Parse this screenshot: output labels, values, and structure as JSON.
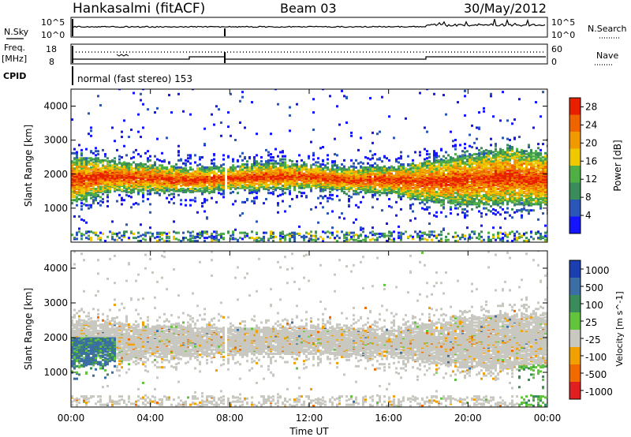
{
  "header": {
    "station": "Hankasalmi (fitACF)",
    "beam": "Beam 03",
    "date": "30/May/2012"
  },
  "small_panels": {
    "nsky_label": "N.Sky",
    "nsky_ticks": [
      "10^5",
      "10^0"
    ],
    "nsearch_ticks": [
      "10^5",
      "10^0"
    ],
    "nsearch_label": "N.Search",
    "freq_label_1": "Freq.",
    "freq_label_2": "[MHz]",
    "freq_ticks": [
      "18",
      "8"
    ],
    "nave_ticks": [
      "60",
      "0"
    ],
    "nave_label": "Nave",
    "cpid_label": "CPID",
    "cpid_text": "normal (fast stereo) 153"
  },
  "colors": {
    "power": [
      "#1414ff",
      "#2a56b8",
      "#3a8c5a",
      "#4fae44",
      "#f0c800",
      "#f09a00",
      "#f06400",
      "#e82000"
    ],
    "velocity": [
      "#1b3fb0",
      "#3a6ea5",
      "#3a8c5a",
      "#62c43c",
      "#c8c8c0",
      "#f0a000",
      "#f06a00",
      "#e02020"
    ]
  },
  "chart_data": [
    {
      "type": "heatmap",
      "title": "",
      "ylabel": "Slant Range [km]",
      "xlabel": "",
      "x_ticks": [
        "00:00",
        "04:00",
        "08:00",
        "12:00",
        "16:00",
        "20:00",
        "00:00"
      ],
      "y_ticks": [
        "4000",
        "3000",
        "2000",
        "1000"
      ],
      "ylim": [
        0,
        4500
      ],
      "xlim_hours": [
        0,
        24
      ],
      "colorbar": {
        "label": "Power [dB]",
        "ticks": [
          "28",
          "24",
          "20",
          "16",
          "12",
          "8",
          "4"
        ],
        "range": [
          0,
          30
        ]
      },
      "echo_band": [
        {
          "hour": 0,
          "center_km": 1800,
          "width_km": 1400
        },
        {
          "hour": 2,
          "center_km": 1900,
          "width_km": 900
        },
        {
          "hour": 4,
          "center_km": 1850,
          "width_km": 800
        },
        {
          "hour": 6,
          "center_km": 1800,
          "width_km": 700
        },
        {
          "hour": 8,
          "center_km": 1850,
          "width_km": 700
        },
        {
          "hour": 10,
          "center_km": 1900,
          "width_km": 800
        },
        {
          "hour": 12,
          "center_km": 1900,
          "width_km": 700
        },
        {
          "hour": 14,
          "center_km": 1800,
          "width_km": 700
        },
        {
          "hour": 16,
          "center_km": 1800,
          "width_km": 800
        },
        {
          "hour": 18,
          "center_km": 1750,
          "width_km": 1200
        },
        {
          "hour": 20,
          "center_km": 1800,
          "width_km": 1500
        },
        {
          "hour": 22,
          "center_km": 1900,
          "width_km": 1700
        },
        {
          "hour": 24,
          "center_km": 1800,
          "width_km": 1500
        }
      ]
    },
    {
      "type": "heatmap",
      "title": "",
      "ylabel": "Slant Range [km]",
      "xlabel": "Time UT",
      "x_ticks": [
        "00:00",
        "04:00",
        "08:00",
        "12:00",
        "16:00",
        "20:00",
        "00:00"
      ],
      "y_ticks": [
        "4000",
        "3000",
        "2000",
        "1000"
      ],
      "ylim": [
        0,
        4500
      ],
      "xlim_hours": [
        0,
        24
      ],
      "colorbar": {
        "label": "Velocity [m s^-1]",
        "ticks": [
          "1000",
          "500",
          "100",
          "25",
          "-25",
          "-100",
          "-500",
          "-1000"
        ]
      },
      "echo_band": [
        {
          "hour": 0,
          "center_km": 1800,
          "width_km": 1400
        },
        {
          "hour": 4,
          "center_km": 1850,
          "width_km": 900
        },
        {
          "hour": 8,
          "center_km": 1850,
          "width_km": 800
        },
        {
          "hour": 12,
          "center_km": 1900,
          "width_km": 800
        },
        {
          "hour": 16,
          "center_km": 1800,
          "width_km": 800
        },
        {
          "hour": 20,
          "center_km": 1800,
          "width_km": 1500
        },
        {
          "hour": 24,
          "center_km": 1900,
          "width_km": 1600
        }
      ]
    }
  ]
}
